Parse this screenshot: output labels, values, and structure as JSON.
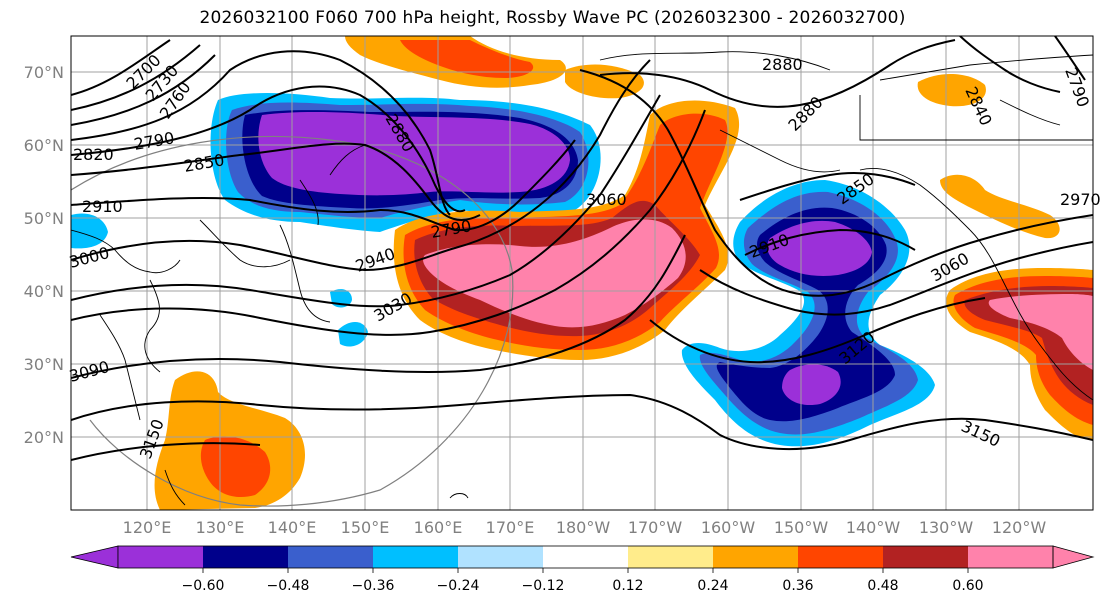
{
  "title": "2026032100 F060 700 hPa height, Rossby Wave PC (2026032300 - 2026032700)",
  "map": {
    "latitude_labels": [
      "70°N",
      "60°N",
      "50°N",
      "40°N",
      "30°N",
      "20°N"
    ],
    "longitude_labels": [
      "120°E",
      "130°E",
      "140°E",
      "150°E",
      "160°E",
      "170°E",
      "180°W",
      "170°W",
      "160°W",
      "150°W",
      "140°W",
      "130°W",
      "120°W"
    ],
    "contour_labels": [
      "2700",
      "2730",
      "2760",
      "2790",
      "2820",
      "2850",
      "2880",
      "2910",
      "2940",
      "3000",
      "3030",
      "3060",
      "3090",
      "3120",
      "3150",
      "2880",
      "2880",
      "2790",
      "2850",
      "2910",
      "3060",
      "3150",
      "2970",
      "2840",
      "2790"
    ]
  },
  "colorbar": {
    "tick_labels": [
      "−0.60",
      "−0.48",
      "−0.36",
      "−0.24",
      "−0.12",
      "0.12",
      "0.24",
      "0.36",
      "0.48",
      "0.60"
    ],
    "colors": [
      "#9b30d9",
      "#00008b",
      "#3a5fcd",
      "#00bfff",
      "#b0e2ff",
      "#ffffff",
      "#ffec8b",
      "#ffa500",
      "#ff4500",
      "#b22222",
      "#ff82ab"
    ]
  }
}
